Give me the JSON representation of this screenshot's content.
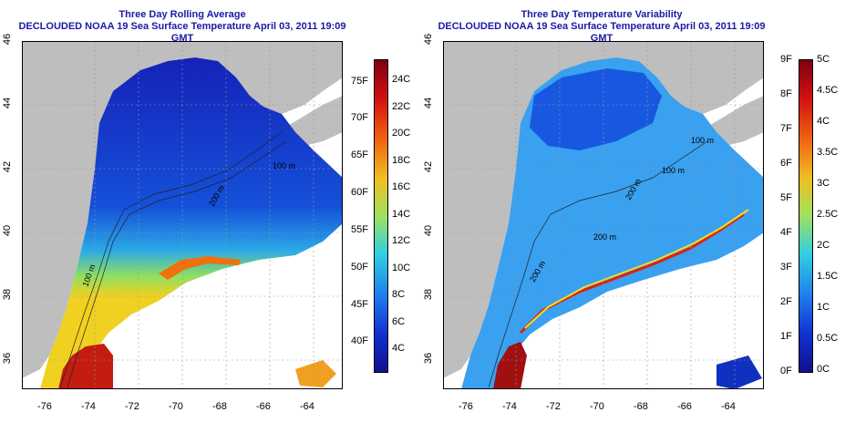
{
  "left_panel": {
    "title_line1": "Three Day Rolling Average",
    "title_line2": "DECLOUDED NOAA 19 Sea Surface Temperature April 03, 2011 19:09 GMT",
    "lon_ticks": [
      "-76",
      "-74",
      "-72",
      "-70",
      "-68",
      "-66",
      "-64"
    ],
    "lat_ticks": [
      "36",
      "38",
      "40",
      "42",
      "44",
      "46"
    ],
    "contour_labels": [
      "100 m",
      "200 m",
      "100 m"
    ],
    "colorbar_f": [
      "75F",
      "70F",
      "65F",
      "60F",
      "55F",
      "50F",
      "45F",
      "40F"
    ],
    "colorbar_c": [
      "24C",
      "22C",
      "20C",
      "18C",
      "16C",
      "14C",
      "12C",
      "10C",
      "8C",
      "6C",
      "4C"
    ]
  },
  "right_panel": {
    "title_line1": "Three Day Temperature Variability",
    "title_line2": "DECLOUDED NOAA 19 Sea Surface Temperature April 03, 2011 19:09 GMT",
    "lon_ticks": [
      "-76",
      "-74",
      "-72",
      "-70",
      "-68",
      "-66",
      "-64"
    ],
    "lat_ticks": [
      "36",
      "38",
      "40",
      "42",
      "44",
      "46"
    ],
    "contour_labels": [
      "200 m",
      "200 m",
      "200 m",
      "100 m",
      "100 m"
    ],
    "colorbar_f": [
      "9F",
      "8F",
      "7F",
      "6F",
      "5F",
      "4F",
      "3F",
      "2F",
      "1F",
      "0F"
    ],
    "colorbar_c": [
      "5C",
      "4.5C",
      "4C",
      "3.5C",
      "3C",
      "2.5C",
      "2C",
      "1.5C",
      "1C",
      "0.5C",
      "0C"
    ]
  },
  "colors": {
    "land": "#bebebe",
    "title": "#1a1aa6",
    "ocean_cold": "#1030c8",
    "ocean_warm": "#b01010"
  }
}
